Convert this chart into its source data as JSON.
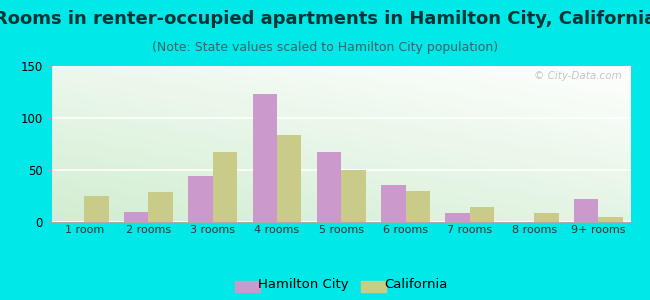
{
  "categories": [
    "1 room",
    "2 rooms",
    "3 rooms",
    "4 rooms",
    "5 rooms",
    "6 rooms",
    "7 rooms",
    "8 rooms",
    "9+ rooms"
  ],
  "hamilton_city": [
    0,
    10,
    44,
    123,
    67,
    36,
    9,
    0,
    22
  ],
  "california": [
    25,
    29,
    67,
    84,
    50,
    30,
    14,
    9,
    5
  ],
  "hamilton_color": "#cc99cc",
  "california_color": "#c8cc88",
  "title": "Rooms in renter-occupied apartments in Hamilton City, California",
  "subtitle": "(Note: State values scaled to Hamilton City population)",
  "ylim": [
    0,
    150
  ],
  "yticks": [
    0,
    50,
    100,
    150
  ],
  "background_outer": "#00e8e8",
  "legend_hamilton": "Hamilton City",
  "legend_california": "California",
  "watermark": "© City-Data.com",
  "bar_width": 0.38,
  "title_fontsize": 13,
  "subtitle_fontsize": 9,
  "title_color": "#003333",
  "subtitle_color": "#336666"
}
